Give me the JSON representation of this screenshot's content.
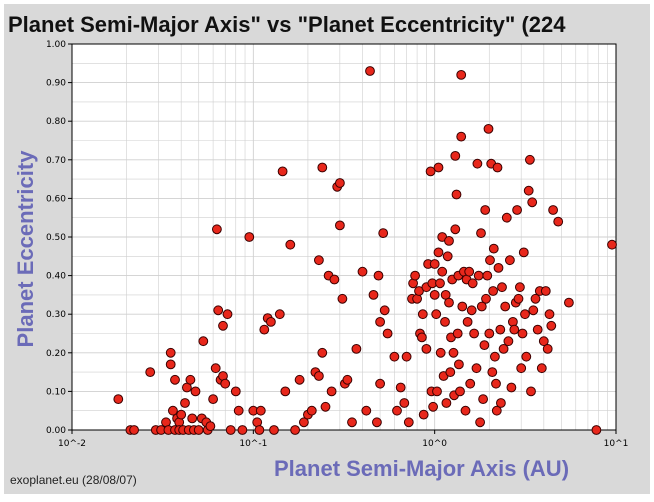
{
  "header": {
    "title": "Planet Semi-Major Axis\"  vs \"Planet Eccentricity\" (224"
  },
  "footer": {
    "source": "exoplanet.eu (28/08/07)"
  },
  "colors": {
    "background": "#d9d9d9",
    "plot": "#ffffff",
    "grid": "#cfcfcf",
    "marker_fill": "#e8271b",
    "marker_stroke": "#3a0000",
    "axis_label": "#6b6bb8"
  },
  "chart_data": {
    "type": "scatter",
    "title": "Planet Semi-Major Axis\"  vs \"Planet Eccentricity\" (224",
    "xlabel": "Planet Semi-Major Axis (AU)",
    "ylabel": "Planet Eccentricity",
    "x_scale": "log",
    "xlim": [
      0.01,
      10
    ],
    "ylim": [
      0,
      1
    ],
    "grid": true,
    "x_ticks": [
      0.01,
      0.1,
      1,
      10
    ],
    "x_tick_labels": [
      "10^-2",
      "10^-1",
      "10^0",
      "10^1"
    ],
    "y_ticks": [
      0,
      0.1,
      0.2,
      0.3,
      0.4,
      0.5,
      0.6,
      0.7,
      0.8,
      0.9,
      1.0
    ],
    "y_tick_labels": [
      "0.00",
      "0.10",
      "0.20",
      "0.30",
      "0.40",
      "0.50",
      "0.60",
      "0.70",
      "0.80",
      "0.90",
      "1.00"
    ],
    "points": [
      [
        0.018,
        0.08
      ],
      [
        0.021,
        0.0
      ],
      [
        0.022,
        0.0
      ],
      [
        0.027,
        0.15
      ],
      [
        0.029,
        0.0
      ],
      [
        0.031,
        0.0
      ],
      [
        0.033,
        0.02
      ],
      [
        0.034,
        0.0
      ],
      [
        0.035,
        0.17
      ],
      [
        0.035,
        0.2
      ],
      [
        0.036,
        0.05
      ],
      [
        0.037,
        0.13
      ],
      [
        0.037,
        0.0
      ],
      [
        0.038,
        0.03
      ],
      [
        0.039,
        0.02
      ],
      [
        0.039,
        0.0
      ],
      [
        0.04,
        0.04
      ],
      [
        0.041,
        0.0
      ],
      [
        0.042,
        0.07
      ],
      [
        0.043,
        0.11
      ],
      [
        0.044,
        0.0
      ],
      [
        0.045,
        0.13
      ],
      [
        0.046,
        0.03
      ],
      [
        0.047,
        0.0
      ],
      [
        0.048,
        0.1
      ],
      [
        0.05,
        0.0
      ],
      [
        0.052,
        0.03
      ],
      [
        0.053,
        0.23
      ],
      [
        0.055,
        0.02
      ],
      [
        0.056,
        0.0
      ],
      [
        0.058,
        0.01
      ],
      [
        0.06,
        0.08
      ],
      [
        0.062,
        0.16
      ],
      [
        0.063,
        0.52
      ],
      [
        0.064,
        0.31
      ],
      [
        0.066,
        0.13
      ],
      [
        0.068,
        0.14
      ],
      [
        0.068,
        0.27
      ],
      [
        0.07,
        0.12
      ],
      [
        0.072,
        0.3
      ],
      [
        0.075,
        0.0
      ],
      [
        0.08,
        0.1
      ],
      [
        0.083,
        0.05
      ],
      [
        0.087,
        0.0
      ],
      [
        0.095,
        0.5
      ],
      [
        0.1,
        0.05
      ],
      [
        0.105,
        0.02
      ],
      [
        0.108,
        0.0
      ],
      [
        0.11,
        0.05
      ],
      [
        0.115,
        0.26
      ],
      [
        0.12,
        0.29
      ],
      [
        0.125,
        0.28
      ],
      [
        0.13,
        0.0
      ],
      [
        0.14,
        0.3
      ],
      [
        0.145,
        0.67
      ],
      [
        0.15,
        0.1
      ],
      [
        0.16,
        0.48
      ],
      [
        0.17,
        0.0
      ],
      [
        0.18,
        0.13
      ],
      [
        0.19,
        0.02
      ],
      [
        0.2,
        0.04
      ],
      [
        0.21,
        0.05
      ],
      [
        0.22,
        0.15
      ],
      [
        0.23,
        0.44
      ],
      [
        0.23,
        0.14
      ],
      [
        0.24,
        0.2
      ],
      [
        0.24,
        0.68
      ],
      [
        0.25,
        0.06
      ],
      [
        0.26,
        0.4
      ],
      [
        0.27,
        0.1
      ],
      [
        0.28,
        0.39
      ],
      [
        0.29,
        0.63
      ],
      [
        0.3,
        0.64
      ],
      [
        0.3,
        0.53
      ],
      [
        0.31,
        0.34
      ],
      [
        0.32,
        0.12
      ],
      [
        0.33,
        0.13
      ],
      [
        0.35,
        0.02
      ],
      [
        0.37,
        0.21
      ],
      [
        0.4,
        0.41
      ],
      [
        0.42,
        0.05
      ],
      [
        0.44,
        0.93
      ],
      [
        0.46,
        0.35
      ],
      [
        0.48,
        0.02
      ],
      [
        0.49,
        0.4
      ],
      [
        0.5,
        0.12
      ],
      [
        0.5,
        0.28
      ],
      [
        0.52,
        0.51
      ],
      [
        0.53,
        0.31
      ],
      [
        0.55,
        0.25
      ],
      [
        0.6,
        0.19
      ],
      [
        0.62,
        0.05
      ],
      [
        0.65,
        0.11
      ],
      [
        0.68,
        0.07
      ],
      [
        0.7,
        0.19
      ],
      [
        0.72,
        0.02
      ],
      [
        0.75,
        0.34
      ],
      [
        0.76,
        0.38
      ],
      [
        0.78,
        0.4
      ],
      [
        0.8,
        0.34
      ],
      [
        0.82,
        0.36
      ],
      [
        0.83,
        0.25
      ],
      [
        0.85,
        0.24
      ],
      [
        0.86,
        0.3
      ],
      [
        0.87,
        0.04
      ],
      [
        0.9,
        0.37
      ],
      [
        0.9,
        0.21
      ],
      [
        0.92,
        0.43
      ],
      [
        0.95,
        0.67
      ],
      [
        0.96,
        0.1
      ],
      [
        0.97,
        0.38
      ],
      [
        0.98,
        0.06
      ],
      [
        1.0,
        0.43
      ],
      [
        1.0,
        0.35
      ],
      [
        1.02,
        0.3
      ],
      [
        1.03,
        0.1
      ],
      [
        1.05,
        0.46
      ],
      [
        1.05,
        0.68
      ],
      [
        1.07,
        0.38
      ],
      [
        1.08,
        0.2
      ],
      [
        1.1,
        0.5
      ],
      [
        1.1,
        0.41
      ],
      [
        1.12,
        0.14
      ],
      [
        1.14,
        0.28
      ],
      [
        1.15,
        0.35
      ],
      [
        1.16,
        0.07
      ],
      [
        1.18,
        0.45
      ],
      [
        1.2,
        0.33
      ],
      [
        1.2,
        0.49
      ],
      [
        1.22,
        0.15
      ],
      [
        1.23,
        0.24
      ],
      [
        1.25,
        0.39
      ],
      [
        1.27,
        0.2
      ],
      [
        1.28,
        0.09
      ],
      [
        1.3,
        0.71
      ],
      [
        1.3,
        0.52
      ],
      [
        1.32,
        0.61
      ],
      [
        1.34,
        0.25
      ],
      [
        1.35,
        0.4
      ],
      [
        1.36,
        0.17
      ],
      [
        1.38,
        0.1
      ],
      [
        1.4,
        0.76
      ],
      [
        1.4,
        0.92
      ],
      [
        1.42,
        0.32
      ],
      [
        1.45,
        0.41
      ],
      [
        1.48,
        0.05
      ],
      [
        1.5,
        0.39
      ],
      [
        1.52,
        0.28
      ],
      [
        1.55,
        0.41
      ],
      [
        1.57,
        0.12
      ],
      [
        1.6,
        0.31
      ],
      [
        1.62,
        0.38
      ],
      [
        1.65,
        0.25
      ],
      [
        1.7,
        0.16
      ],
      [
        1.72,
        0.69
      ],
      [
        1.75,
        0.4
      ],
      [
        1.78,
        0.02
      ],
      [
        1.8,
        0.51
      ],
      [
        1.82,
        0.32
      ],
      [
        1.85,
        0.08
      ],
      [
        1.88,
        0.22
      ],
      [
        1.9,
        0.57
      ],
      [
        1.92,
        0.34
      ],
      [
        1.95,
        0.4
      ],
      [
        1.98,
        0.78
      ],
      [
        2.0,
        0.25
      ],
      [
        2.02,
        0.44
      ],
      [
        2.05,
        0.69
      ],
      [
        2.08,
        0.15
      ],
      [
        2.1,
        0.36
      ],
      [
        2.12,
        0.47
      ],
      [
        2.15,
        0.19
      ],
      [
        2.18,
        0.12
      ],
      [
        2.2,
        0.05
      ],
      [
        2.22,
        0.68
      ],
      [
        2.25,
        0.42
      ],
      [
        2.3,
        0.26
      ],
      [
        2.32,
        0.07
      ],
      [
        2.35,
        0.37
      ],
      [
        2.4,
        0.21
      ],
      [
        2.45,
        0.32
      ],
      [
        2.5,
        0.55
      ],
      [
        2.55,
        0.23
      ],
      [
        2.6,
        0.44
      ],
      [
        2.65,
        0.11
      ],
      [
        2.7,
        0.28
      ],
      [
        2.75,
        0.26
      ],
      [
        2.8,
        0.33
      ],
      [
        2.85,
        0.57
      ],
      [
        2.9,
        0.34
      ],
      [
        2.95,
        0.37
      ],
      [
        3.0,
        0.16
      ],
      [
        3.05,
        0.25
      ],
      [
        3.1,
        0.46
      ],
      [
        3.15,
        0.3
      ],
      [
        3.2,
        0.19
      ],
      [
        3.3,
        0.62
      ],
      [
        3.35,
        0.7
      ],
      [
        3.4,
        0.1
      ],
      [
        3.45,
        0.59
      ],
      [
        3.5,
        0.31
      ],
      [
        3.6,
        0.34
      ],
      [
        3.7,
        0.26
      ],
      [
        3.8,
        0.36
      ],
      [
        3.9,
        0.16
      ],
      [
        4.0,
        0.23
      ],
      [
        4.1,
        0.36
      ],
      [
        4.2,
        0.21
      ],
      [
        4.3,
        0.3
      ],
      [
        4.4,
        0.27
      ],
      [
        4.5,
        0.57
      ],
      [
        4.8,
        0.54
      ],
      [
        5.5,
        0.33
      ],
      [
        7.8,
        0.0
      ],
      [
        9.5,
        0.48
      ]
    ]
  }
}
